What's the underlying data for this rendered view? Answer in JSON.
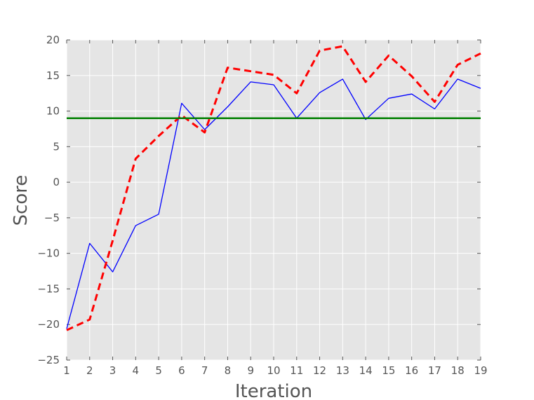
{
  "chart_data": {
    "type": "line",
    "xlabel": "Iteration",
    "ylabel": "Score",
    "xlim": [
      1,
      19
    ],
    "ylim": [
      -25,
      20
    ],
    "x_ticks": [
      1,
      2,
      3,
      4,
      5,
      6,
      7,
      8,
      9,
      10,
      11,
      12,
      13,
      14,
      15,
      16,
      17,
      18,
      19
    ],
    "y_ticks": [
      -25,
      -20,
      -15,
      -10,
      -5,
      0,
      5,
      10,
      15,
      20
    ],
    "y_tick_labels": [
      "−25",
      "−20",
      "−15",
      "−10",
      "−5",
      "0",
      "5",
      "10",
      "15",
      "20"
    ],
    "grid": true,
    "background": "#e5e5e5",
    "x": [
      1,
      2,
      3,
      4,
      5,
      6,
      7,
      8,
      9,
      10,
      11,
      12,
      13,
      14,
      15,
      16,
      17,
      18,
      19
    ],
    "series": [
      {
        "color": "#0000ff",
        "style": "solid",
        "values": [
          -20.6,
          -8.6,
          -12.6,
          -6.1,
          -4.5,
          11.1,
          7.4,
          10.6,
          14.1,
          13.7,
          9.0,
          12.6,
          14.5,
          8.8,
          11.8,
          12.4,
          10.3,
          14.5,
          13.2
        ]
      },
      {
        "color": "#ff0000",
        "style": "dashed",
        "values": [
          -20.8,
          -19.3,
          -8.2,
          3.3,
          6.5,
          9.4,
          7.0,
          16.1,
          15.6,
          15.1,
          12.5,
          18.5,
          19.1,
          14.1,
          17.8,
          14.9,
          11.3,
          16.5,
          18.1
        ]
      },
      {
        "color": "#008000",
        "style": "solid",
        "values": [
          9.0,
          9.0,
          9.0,
          9.0,
          9.0,
          9.0,
          9.0,
          9.0,
          9.0,
          9.0,
          9.0,
          9.0,
          9.0,
          9.0,
          9.0,
          9.0,
          9.0,
          9.0,
          9.0
        ]
      }
    ]
  }
}
